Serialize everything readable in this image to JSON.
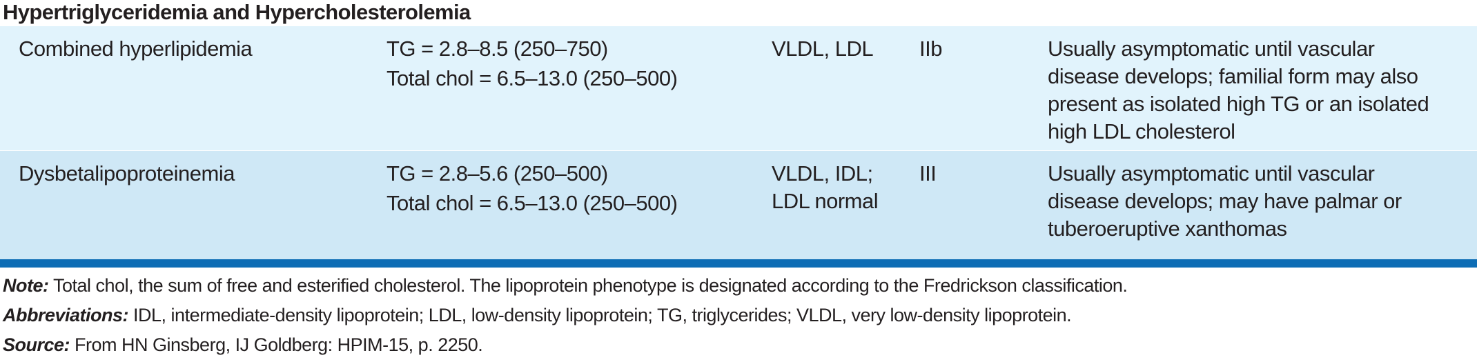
{
  "section": {
    "title": "Hypertriglyceridemia and Hypercholesterolemia"
  },
  "rows": [
    {
      "disorder": "Combined hyperlipidemia",
      "levels": [
        "TG = 2.8–8.5 (250–750)",
        "Total chol = 6.5–13.0 (250–500)"
      ],
      "lipoproteins": [
        "VLDL, LDL"
      ],
      "phenotype": "IIb",
      "signs": [
        "Usually asymptomatic until vascular",
        "disease develops; familial form may also",
        "present as isolated high TG or an isolated",
        "high LDL cholesterol"
      ]
    },
    {
      "disorder": "Dysbetalipoproteinemia",
      "levels": [
        "TG = 2.8–5.6 (250–500)",
        "Total chol = 6.5–13.0 (250–500)"
      ],
      "lipoproteins": [
        "VLDL, IDL;",
        "LDL normal"
      ],
      "phenotype": "III",
      "signs": [
        "Usually asymptomatic until vascular",
        "disease develops; may have palmar or",
        "tuberoeruptive xanthomas"
      ]
    }
  ],
  "notes": {
    "note_label": "Note:",
    "note_text": " Total chol, the sum of free and esterified cholesterol. The lipoprotein phenotype is designated according to the Fredrickson classification.",
    "abbrev_label": "Abbreviations:",
    "abbrev_text": " IDL, intermediate-density lipoprotein; LDL, low-density lipoprotein; TG, triglycerides; VLDL, very low-density lipoprotein.",
    "source_label": "Source:",
    "source_text": " From HN Ginsberg, IJ Goldberg: HPIM-15, p. 2250."
  },
  "colors": {
    "row_light": "#e1f3fc",
    "row_medium": "#cfe8f6",
    "rule_blue": "#0d6db5",
    "text": "#231f20"
  }
}
